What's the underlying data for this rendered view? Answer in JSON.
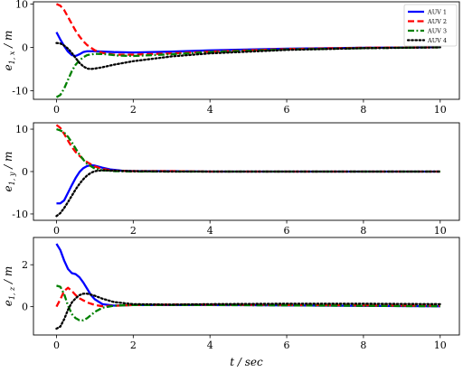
{
  "chart_data": [
    {
      "type": "line",
      "title": "",
      "xlabel": "",
      "ylabel": "e1,x / m",
      "ylabel_main": "e",
      "ylabel_sub": "1, x",
      "ylabel_unit": " / m",
      "xlim": [
        -0.6,
        10.5
      ],
      "ylim": [
        -12.0,
        10.5
      ],
      "xticks": [
        0,
        2,
        4,
        6,
        8,
        10
      ],
      "yticks": [
        -10,
        0,
        10
      ],
      "legend": "top-right",
      "grid": false,
      "series": [
        {
          "name": "AUV 1",
          "color": "#0000ff",
          "dash": "solid",
          "x": [
            0,
            0.1,
            0.2,
            0.3,
            0.4,
            0.5,
            0.6,
            0.7,
            0.8,
            1.0,
            1.5,
            2.0,
            3.0,
            4.0,
            6.0,
            8.0,
            10.0
          ],
          "y": [
            3.5,
            1.8,
            0.3,
            -1.0,
            -1.8,
            -2.0,
            -1.6,
            -1.1,
            -0.9,
            -0.9,
            -1.1,
            -1.2,
            -1.0,
            -0.7,
            -0.3,
            -0.1,
            0.0
          ]
        },
        {
          "name": "AUV 2",
          "color": "#ff0000",
          "dash": "dashed",
          "x": [
            0,
            0.1,
            0.2,
            0.3,
            0.4,
            0.5,
            0.6,
            0.7,
            0.8,
            1.0,
            1.2,
            1.5,
            2.0,
            3.0,
            4.0,
            6.0,
            8.0,
            10.0
          ],
          "y": [
            10.0,
            9.6,
            8.6,
            7.0,
            5.4,
            3.8,
            2.5,
            1.4,
            0.5,
            -0.7,
            -1.3,
            -1.7,
            -1.7,
            -1.4,
            -1.0,
            -0.4,
            -0.1,
            0.0
          ]
        },
        {
          "name": "AUV 3",
          "color": "#008000",
          "dash": "dashdot",
          "x": [
            0,
            0.1,
            0.2,
            0.3,
            0.4,
            0.5,
            0.6,
            0.7,
            0.8,
            1.0,
            1.3,
            1.6,
            2.0,
            3.0,
            4.0,
            6.0,
            8.0,
            10.0
          ],
          "y": [
            -11.5,
            -11.0,
            -9.5,
            -7.5,
            -5.5,
            -4.0,
            -3.0,
            -2.3,
            -1.8,
            -1.5,
            -1.6,
            -1.9,
            -2.0,
            -1.6,
            -1.1,
            -0.5,
            -0.2,
            0.0
          ]
        },
        {
          "name": "AUV 4",
          "color": "#000000",
          "dash": "dotted",
          "x": [
            0,
            0.1,
            0.2,
            0.3,
            0.4,
            0.5,
            0.6,
            0.7,
            0.8,
            0.9,
            1.0,
            1.2,
            1.5,
            2.0,
            3.0,
            4.0,
            6.0,
            8.0,
            10.0
          ],
          "y": [
            1.0,
            0.9,
            0.4,
            -0.3,
            -1.3,
            -2.5,
            -3.6,
            -4.4,
            -4.9,
            -5.0,
            -4.9,
            -4.6,
            -4.0,
            -3.2,
            -2.1,
            -1.4,
            -0.6,
            -0.2,
            0.0
          ]
        }
      ]
    },
    {
      "type": "line",
      "title": "",
      "xlabel": "",
      "ylabel": "e1,y / m",
      "ylabel_main": "e",
      "ylabel_sub": "1, y",
      "ylabel_unit": " / m",
      "xlim": [
        -0.6,
        10.5
      ],
      "ylim": [
        -11.5,
        11.5
      ],
      "xticks": [
        0,
        2,
        4,
        6,
        8,
        10
      ],
      "yticks": [
        -10,
        0,
        10
      ],
      "grid": false,
      "series": [
        {
          "name": "AUV 1",
          "color": "#0000ff",
          "dash": "solid",
          "x": [
            0,
            0.1,
            0.2,
            0.3,
            0.4,
            0.5,
            0.6,
            0.7,
            0.8,
            0.9,
            1.0,
            1.2,
            1.4,
            1.7,
            2.0,
            3.0,
            4.0,
            6.0,
            8.0,
            10.0
          ],
          "y": [
            -7.5,
            -7.5,
            -6.8,
            -5.0,
            -3.2,
            -1.5,
            -0.1,
            0.8,
            1.3,
            1.5,
            1.4,
            0.9,
            0.5,
            0.2,
            0.1,
            0.1,
            0.0,
            0.0,
            0.0,
            0.0
          ]
        },
        {
          "name": "AUV 2",
          "color": "#ff0000",
          "dash": "dashed",
          "x": [
            0,
            0.1,
            0.2,
            0.3,
            0.4,
            0.5,
            0.6,
            0.7,
            0.8,
            1.0,
            1.2,
            1.5,
            2.0,
            3.0,
            4.0,
            6.0,
            8.0,
            10.0
          ],
          "y": [
            11.0,
            10.3,
            8.9,
            7.3,
            5.8,
            4.6,
            3.7,
            2.9,
            2.2,
            1.2,
            0.6,
            0.2,
            0.1,
            0.1,
            0.0,
            0.0,
            0.0,
            0.0
          ]
        },
        {
          "name": "AUV 3",
          "color": "#008000",
          "dash": "dashdot",
          "x": [
            0,
            0.1,
            0.2,
            0.3,
            0.4,
            0.5,
            0.6,
            0.7,
            0.8,
            1.0,
            1.2,
            1.5,
            2.0,
            3.0,
            4.0,
            6.0,
            8.0,
            10.0
          ],
          "y": [
            10.0,
            9.7,
            9.2,
            8.2,
            6.9,
            5.4,
            4.0,
            2.8,
            1.8,
            0.7,
            0.3,
            0.1,
            0.0,
            0.0,
            0.0,
            0.0,
            0.0,
            0.0
          ]
        },
        {
          "name": "AUV 4",
          "color": "#000000",
          "dash": "dotted",
          "x": [
            0,
            0.1,
            0.2,
            0.3,
            0.4,
            0.5,
            0.6,
            0.7,
            0.8,
            0.9,
            1.0,
            1.2,
            1.5,
            2.0,
            3.0,
            4.0,
            6.0,
            8.0,
            10.0
          ],
          "y": [
            -10.5,
            -9.8,
            -8.6,
            -7.2,
            -5.7,
            -4.2,
            -2.9,
            -1.8,
            -0.9,
            -0.3,
            0.1,
            0.3,
            0.2,
            0.1,
            0.0,
            0.0,
            0.0,
            0.0,
            0.0
          ]
        }
      ]
    },
    {
      "type": "line",
      "title": "",
      "xlabel": "t / sec",
      "xlabel_main": "t",
      "xlabel_unit": " / sec",
      "ylabel": "e1,z / m",
      "ylabel_main": "e",
      "ylabel_sub": "1, z",
      "ylabel_unit": " / m",
      "xlim": [
        -0.6,
        10.5
      ],
      "ylim": [
        -1.35,
        3.3
      ],
      "xticks": [
        0,
        2,
        4,
        6,
        8,
        10
      ],
      "yticks": [
        0,
        2
      ],
      "grid": false,
      "series": [
        {
          "name": "AUV 1",
          "color": "#0000ff",
          "dash": "solid",
          "x": [
            0,
            0.1,
            0.2,
            0.3,
            0.4,
            0.5,
            0.6,
            0.7,
            0.8,
            0.9,
            1.0,
            1.2,
            1.5,
            2.0,
            3.0,
            4.0,
            6.0,
            8.0,
            10.0
          ],
          "y": [
            3.0,
            2.7,
            2.2,
            1.8,
            1.6,
            1.55,
            1.4,
            1.15,
            0.85,
            0.55,
            0.35,
            0.12,
            0.05,
            0.08,
            0.08,
            0.08,
            0.06,
            0.04,
            0.02
          ]
        },
        {
          "name": "AUV 2",
          "color": "#ff0000",
          "dash": "dashed",
          "x": [
            0,
            0.1,
            0.2,
            0.3,
            0.4,
            0.5,
            0.6,
            0.7,
            0.8,
            1.0,
            1.2,
            1.5,
            2.0,
            3.0,
            4.0,
            6.0,
            8.0,
            10.0
          ],
          "y": [
            0.0,
            0.35,
            0.75,
            0.9,
            0.75,
            0.55,
            0.4,
            0.3,
            0.2,
            0.08,
            0.02,
            0.04,
            0.08,
            0.1,
            0.1,
            0.08,
            0.06,
            0.04
          ]
        },
        {
          "name": "AUV 3",
          "color": "#008000",
          "dash": "dashdot",
          "x": [
            0,
            0.1,
            0.2,
            0.3,
            0.4,
            0.5,
            0.6,
            0.7,
            0.8,
            0.9,
            1.0,
            1.2,
            1.5,
            2.0,
            3.0,
            4.0,
            6.0,
            8.0,
            10.0
          ],
          "y": [
            1.0,
            0.95,
            0.6,
            0.05,
            -0.35,
            -0.55,
            -0.65,
            -0.65,
            -0.55,
            -0.4,
            -0.25,
            -0.05,
            0.05,
            0.08,
            0.08,
            0.08,
            0.06,
            0.04,
            0.02
          ]
        },
        {
          "name": "AUV 4",
          "color": "#000000",
          "dash": "dotted",
          "x": [
            0,
            0.1,
            0.2,
            0.3,
            0.4,
            0.5,
            0.6,
            0.7,
            0.8,
            1.0,
            1.2,
            1.5,
            2.0,
            3.0,
            4.0,
            6.0,
            8.0,
            10.0
          ],
          "y": [
            -1.05,
            -0.95,
            -0.6,
            -0.15,
            0.2,
            0.4,
            0.55,
            0.62,
            0.62,
            0.52,
            0.38,
            0.22,
            0.12,
            0.1,
            0.12,
            0.14,
            0.14,
            0.12
          ]
        }
      ]
    }
  ]
}
